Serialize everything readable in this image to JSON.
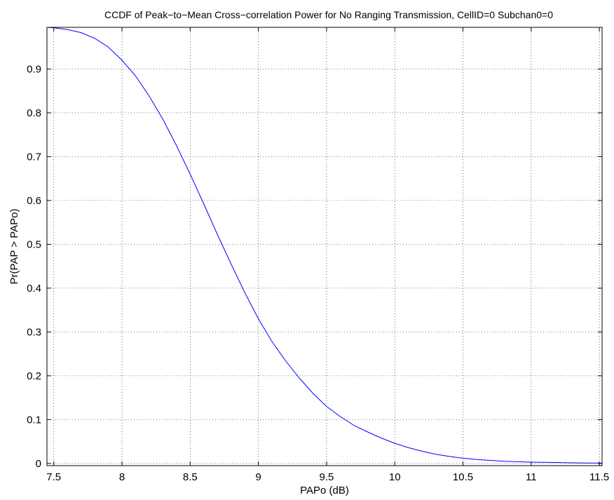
{
  "chart_data": {
    "type": "line",
    "title": "CCDF of Peak−to−Mean Cross−correlation Power for No Ranging Transmission, CellID=0  Subchan0=0",
    "xlabel": "PAPo (dB)",
    "ylabel": "Pr(PAP > PAPo)",
    "xlim": [
      7.45,
      11.52
    ],
    "ylim": [
      -0.005,
      0.995
    ],
    "xticks": [
      7.5,
      8,
      8.5,
      9,
      9.5,
      10,
      10.5,
      11,
      11.5
    ],
    "xtick_labels": [
      "7.5",
      "8",
      "8.5",
      "9",
      "9.5",
      "10",
      "10.5",
      "11",
      "11.5"
    ],
    "yticks": [
      0,
      0.1,
      0.2,
      0.3,
      0.4,
      0.5,
      0.6,
      0.7,
      0.8,
      0.9
    ],
    "ytick_labels": [
      "0",
      "0.1",
      "0.2",
      "0.3",
      "0.4",
      "0.5",
      "0.6",
      "0.7",
      "0.8",
      "0.9"
    ],
    "grid": true,
    "line_color": "#0000ff",
    "series": [
      {
        "x": [
          7.45,
          7.5,
          7.6,
          7.7,
          7.8,
          7.9,
          8.0,
          8.1,
          8.2,
          8.3,
          8.4,
          8.5,
          8.6,
          8.7,
          8.8,
          8.9,
          9.0,
          9.1,
          9.2,
          9.3,
          9.4,
          9.5,
          9.6,
          9.7,
          9.8,
          9.9,
          10.0,
          10.1,
          10.2,
          10.3,
          10.4,
          10.5,
          10.6,
          10.7,
          10.8,
          10.9,
          11.0,
          11.1,
          11.2,
          11.3,
          11.4,
          11.52
        ],
        "y": [
          0.995,
          0.994,
          0.99,
          0.983,
          0.97,
          0.95,
          0.92,
          0.884,
          0.838,
          0.785,
          0.725,
          0.66,
          0.592,
          0.522,
          0.455,
          0.39,
          0.33,
          0.278,
          0.234,
          0.195,
          0.16,
          0.13,
          0.107,
          0.087,
          0.072,
          0.058,
          0.046,
          0.036,
          0.028,
          0.021,
          0.016,
          0.012,
          0.009,
          0.007,
          0.005,
          0.004,
          0.003,
          0.0025,
          0.002,
          0.0015,
          0.001,
          0.0008
        ]
      }
    ]
  }
}
